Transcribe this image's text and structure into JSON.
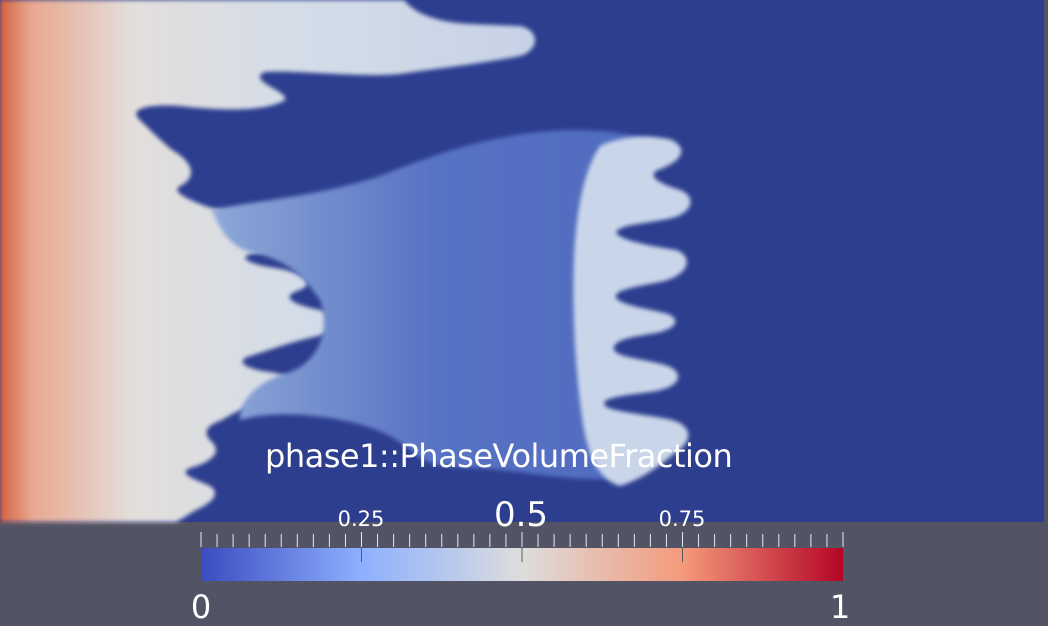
{
  "scalar_bar": {
    "title": "phase1::PhaseVolumeFraction",
    "range_min": "0",
    "range_max": "1",
    "tick_labels": [
      "0.25",
      "0.5",
      "0.75"
    ],
    "colormap": [
      "#3b4cc0",
      "#8db0fe",
      "#dddddd",
      "#f49a7b",
      "#b40426"
    ]
  },
  "colors": {
    "background": "#525466",
    "phase_zero": "#2d3e8f",
    "phase_mid": "#5470c2",
    "phase_light": "#cfdbe8"
  }
}
